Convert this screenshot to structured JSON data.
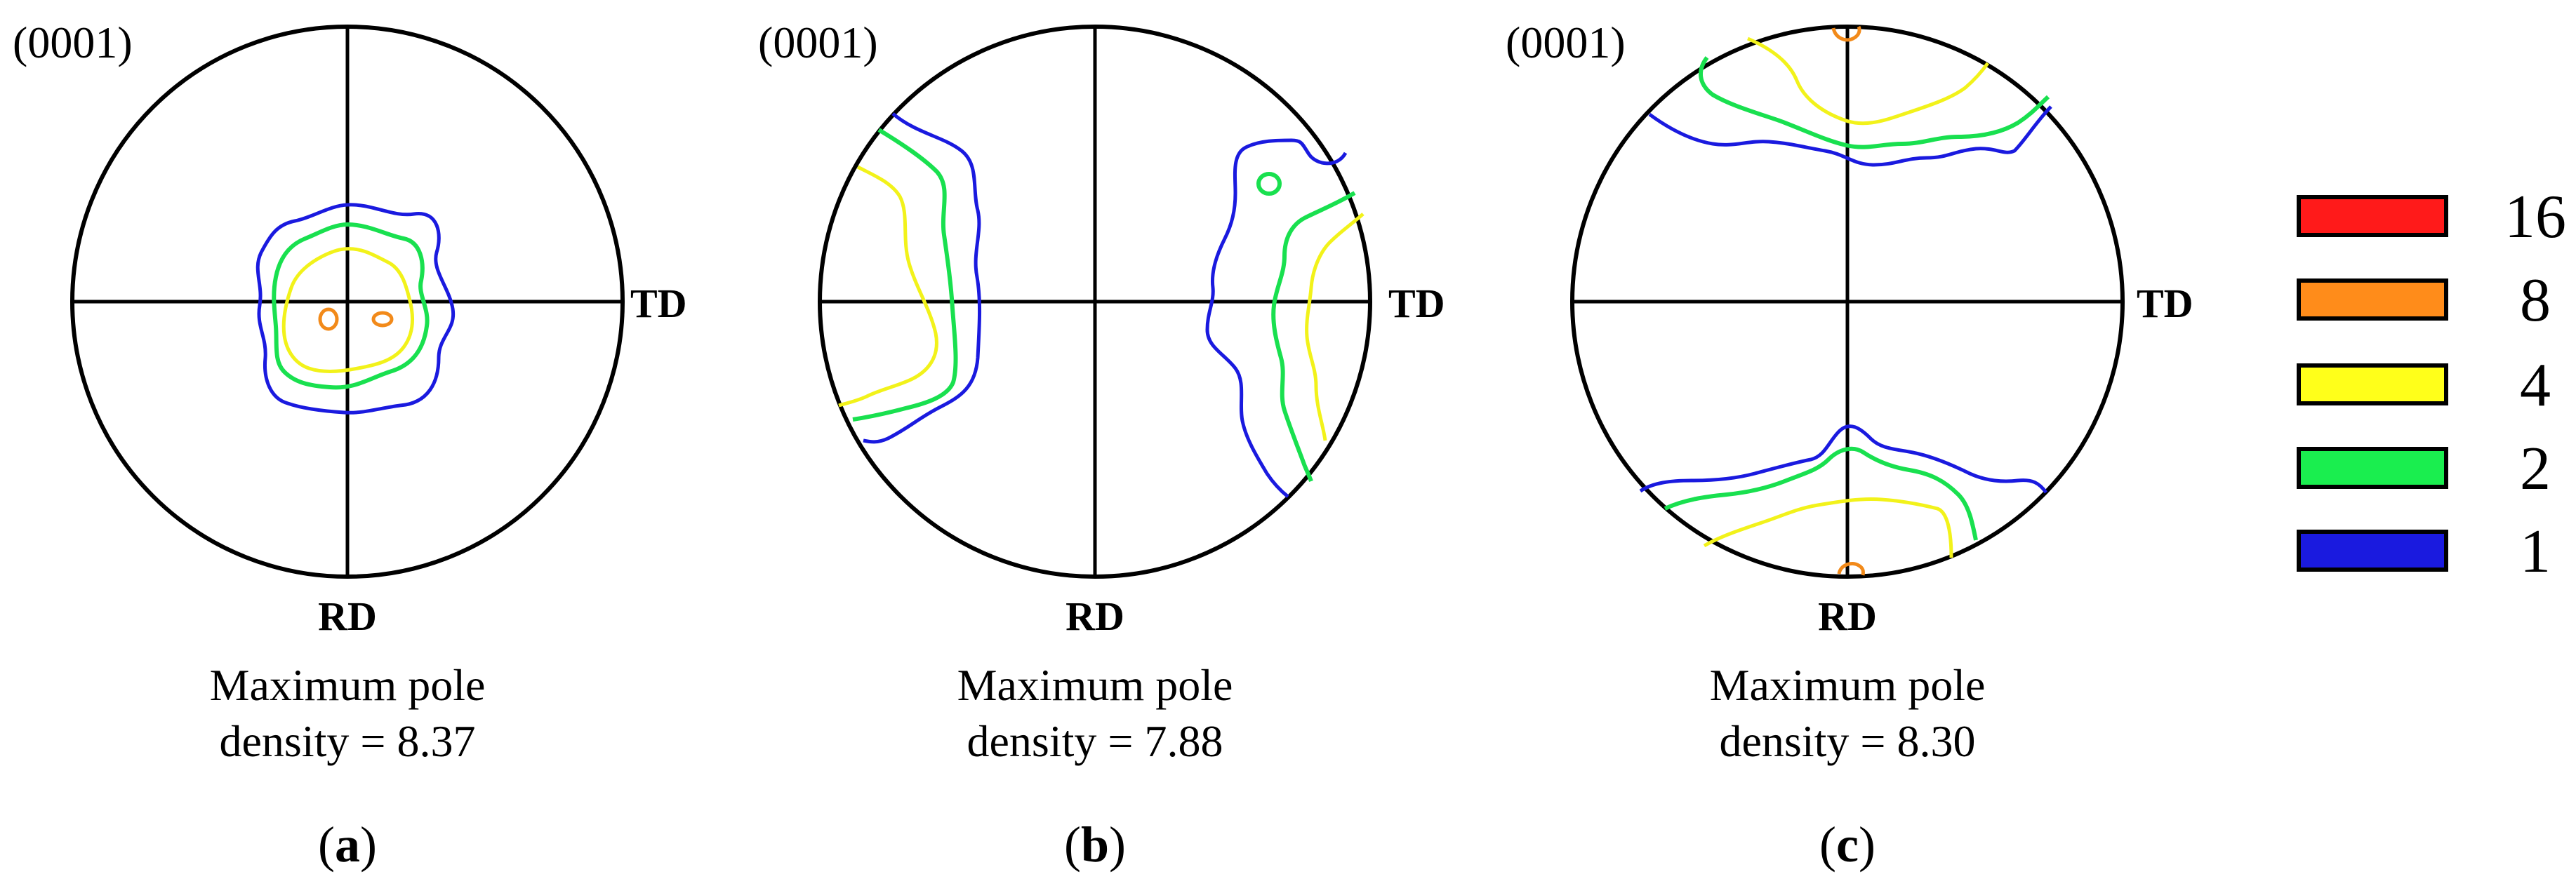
{
  "figure": {
    "panels": [
      {
        "id": "a",
        "plane_label": "(0001)",
        "td_label": "TD",
        "rd_label": "RD",
        "caption_line1": "Maximum pole",
        "caption_line2": "density = 8.37",
        "panel_open": "(",
        "panel_letter": "a",
        "panel_close": ")"
      },
      {
        "id": "b",
        "plane_label": "(0001)",
        "td_label": "TD",
        "rd_label": "RD",
        "caption_line1": "Maximum pole",
        "caption_line2": "density = 7.88",
        "panel_open": "(",
        "panel_letter": "b",
        "panel_close": ")"
      },
      {
        "id": "c",
        "plane_label": "(0001)",
        "td_label": "TD",
        "rd_label": "RD",
        "caption_line1": "Maximum pole",
        "caption_line2": "density = 8.30",
        "panel_open": "(",
        "panel_letter": "c",
        "panel_close": ")"
      }
    ],
    "legend": [
      {
        "label": "16",
        "color": "#ff1a1a"
      },
      {
        "label": "8",
        "color": "#ff8c1a"
      },
      {
        "label": "4",
        "color": "#ffff1a"
      },
      {
        "label": "2",
        "color": "#1aee4f"
      },
      {
        "label": "1",
        "color": "#1a1adf"
      }
    ]
  }
}
